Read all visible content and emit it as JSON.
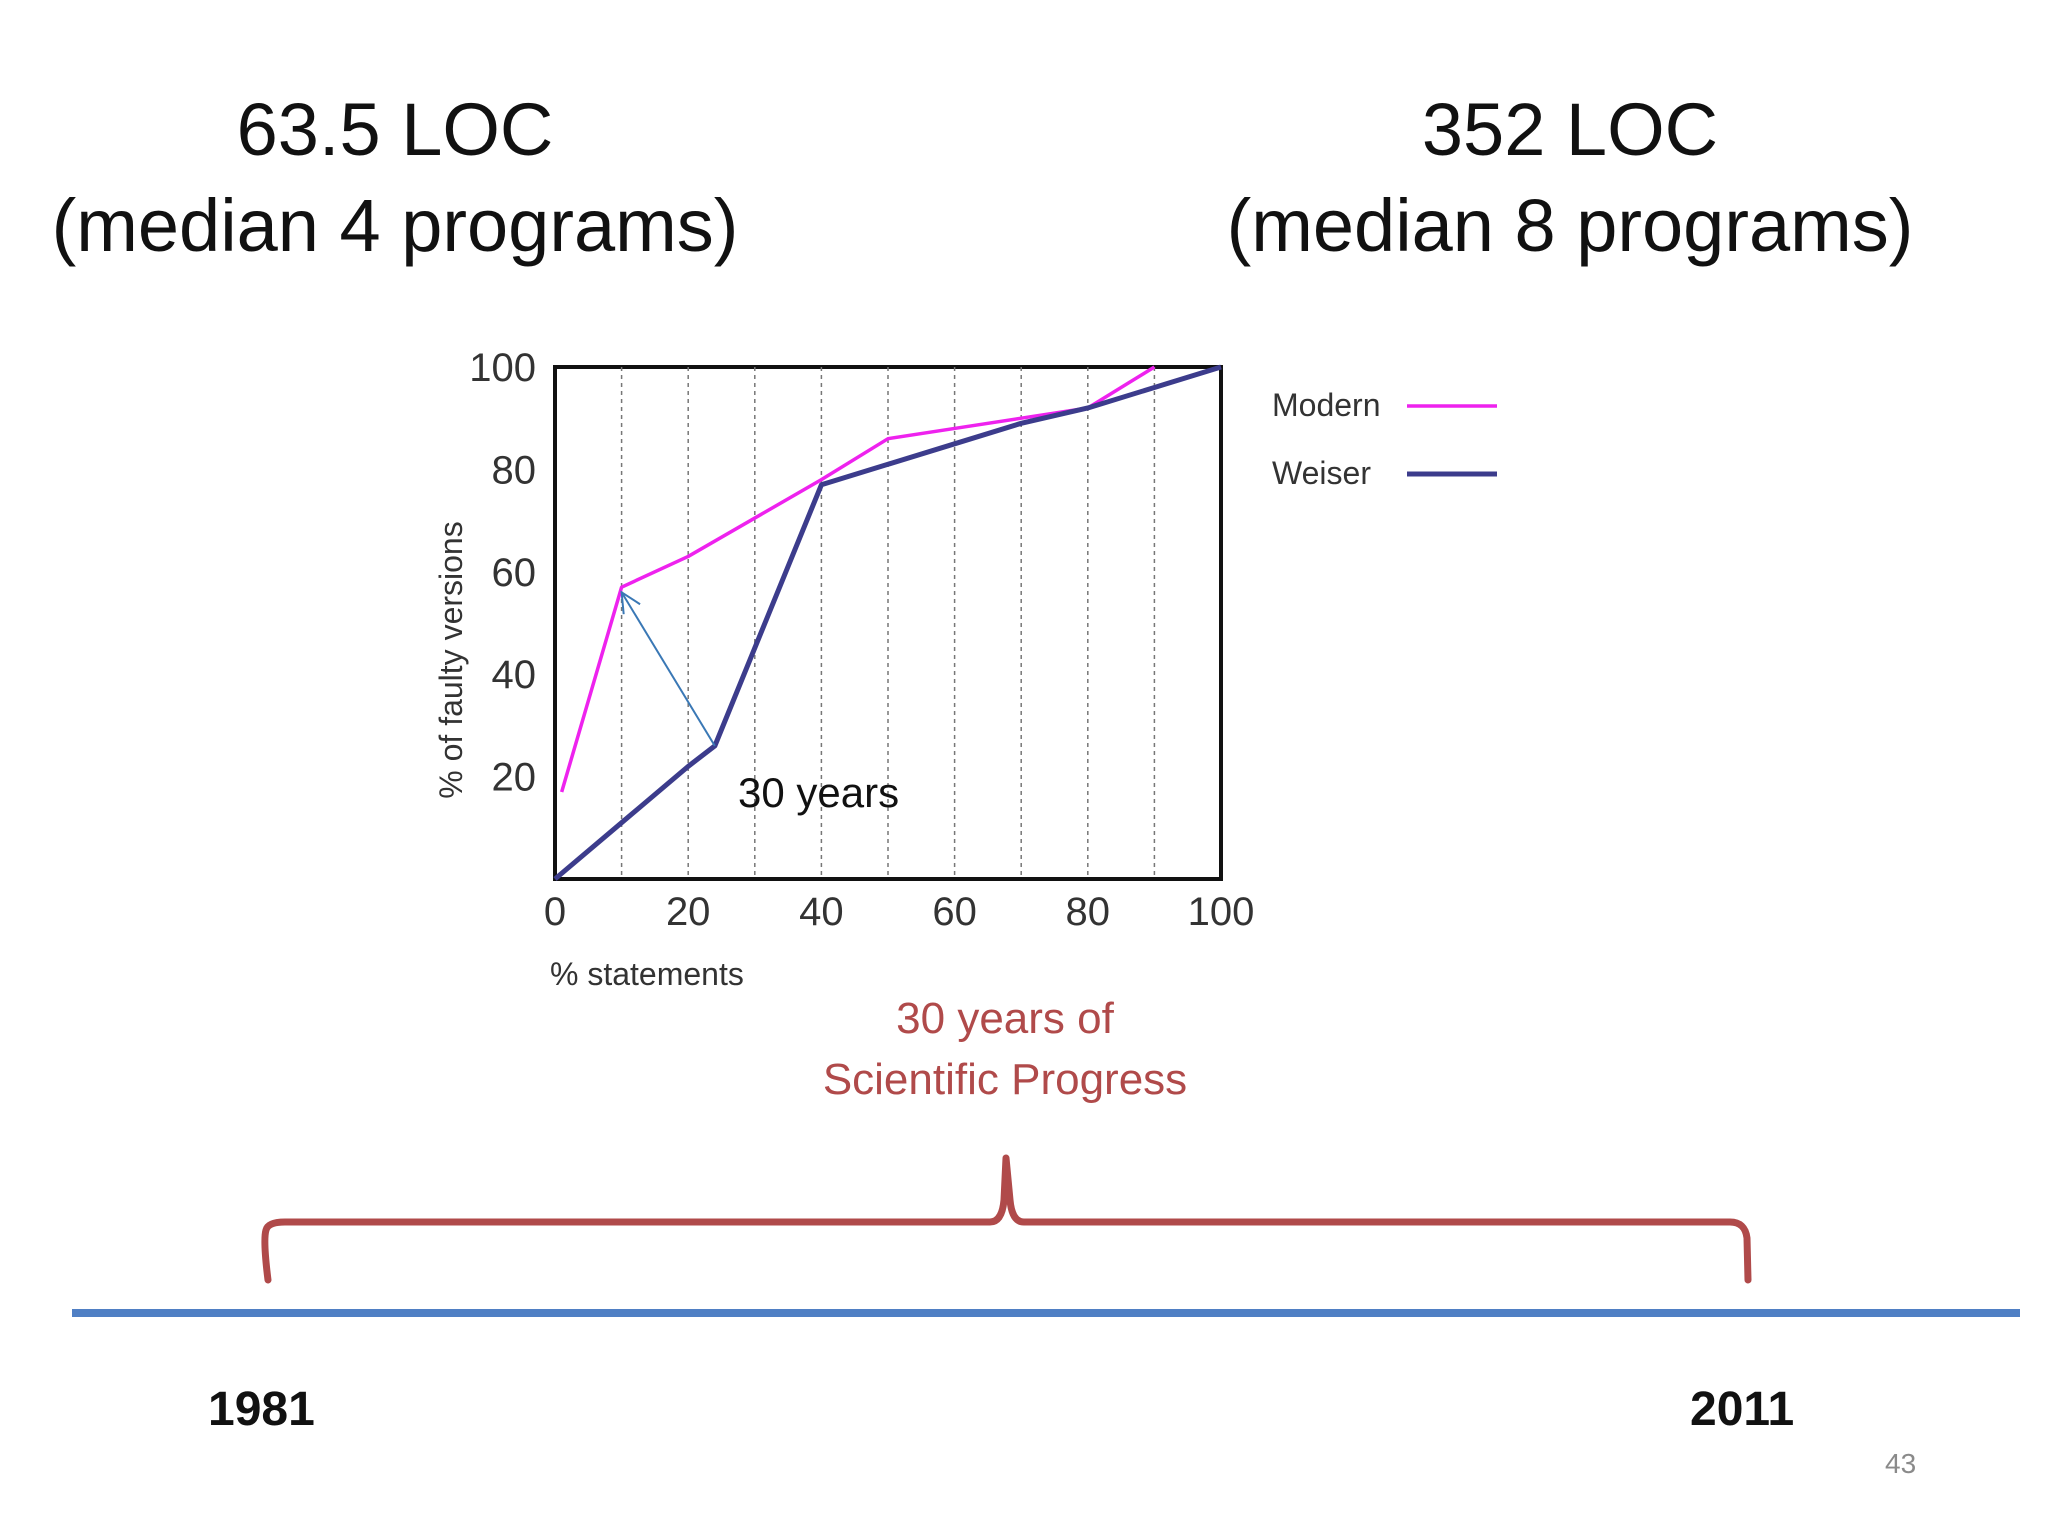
{
  "slide": {
    "left_heading": {
      "line1": "63.5 LOC",
      "line2": "(median 4 programs)"
    },
    "right_heading": {
      "line1": "352 LOC",
      "line2": "(median 8 programs)"
    },
    "progress_caption": {
      "line1": "30 years of",
      "line2": "Scientific Progress"
    },
    "year_start": "1981",
    "year_end": "2011",
    "slide_number": "43",
    "colors": {
      "accent_red": "#b04a4a",
      "timeline_blue": "#4f7fc4",
      "modern": "#ee22ee",
      "weiser": "#3c3c8c",
      "arrow": "#3a78b5"
    }
  },
  "chart_data": {
    "type": "line",
    "xlabel": "% statements",
    "ylabel": "% of faulty versions",
    "xlim": [
      0,
      100
    ],
    "ylim": [
      0,
      100
    ],
    "xticks": [
      0,
      20,
      40,
      60,
      80,
      100
    ],
    "yticks": [
      20,
      40,
      60,
      80,
      100
    ],
    "x_tick_labels": [
      "0",
      "20",
      "40",
      "60",
      "80",
      "100"
    ],
    "y_tick_labels": [
      "20",
      "40",
      "60",
      "80",
      "100"
    ],
    "vertical_grid": [
      10,
      20,
      30,
      40,
      50,
      60,
      70,
      80,
      90
    ],
    "grid": "vertical dashed",
    "legend_position": "right",
    "series": [
      {
        "name": "Modern",
        "color": "#ee22ee",
        "x": [
          1,
          10,
          20,
          40,
          50,
          60,
          70,
          80,
          90
        ],
        "y": [
          17,
          57,
          63,
          78,
          86,
          88,
          90,
          92,
          100
        ]
      },
      {
        "name": "Weiser",
        "color": "#3c3c8c",
        "x": [
          0,
          10,
          20,
          24,
          40,
          50,
          60,
          70,
          80,
          90,
          100
        ],
        "y": [
          0,
          11,
          22,
          26,
          77,
          81,
          85,
          89,
          92,
          96,
          100
        ]
      }
    ],
    "annotation": {
      "text": "30 years",
      "arrow_from": [
        24,
        26
      ],
      "arrow_to": [
        10,
        56
      ]
    }
  }
}
